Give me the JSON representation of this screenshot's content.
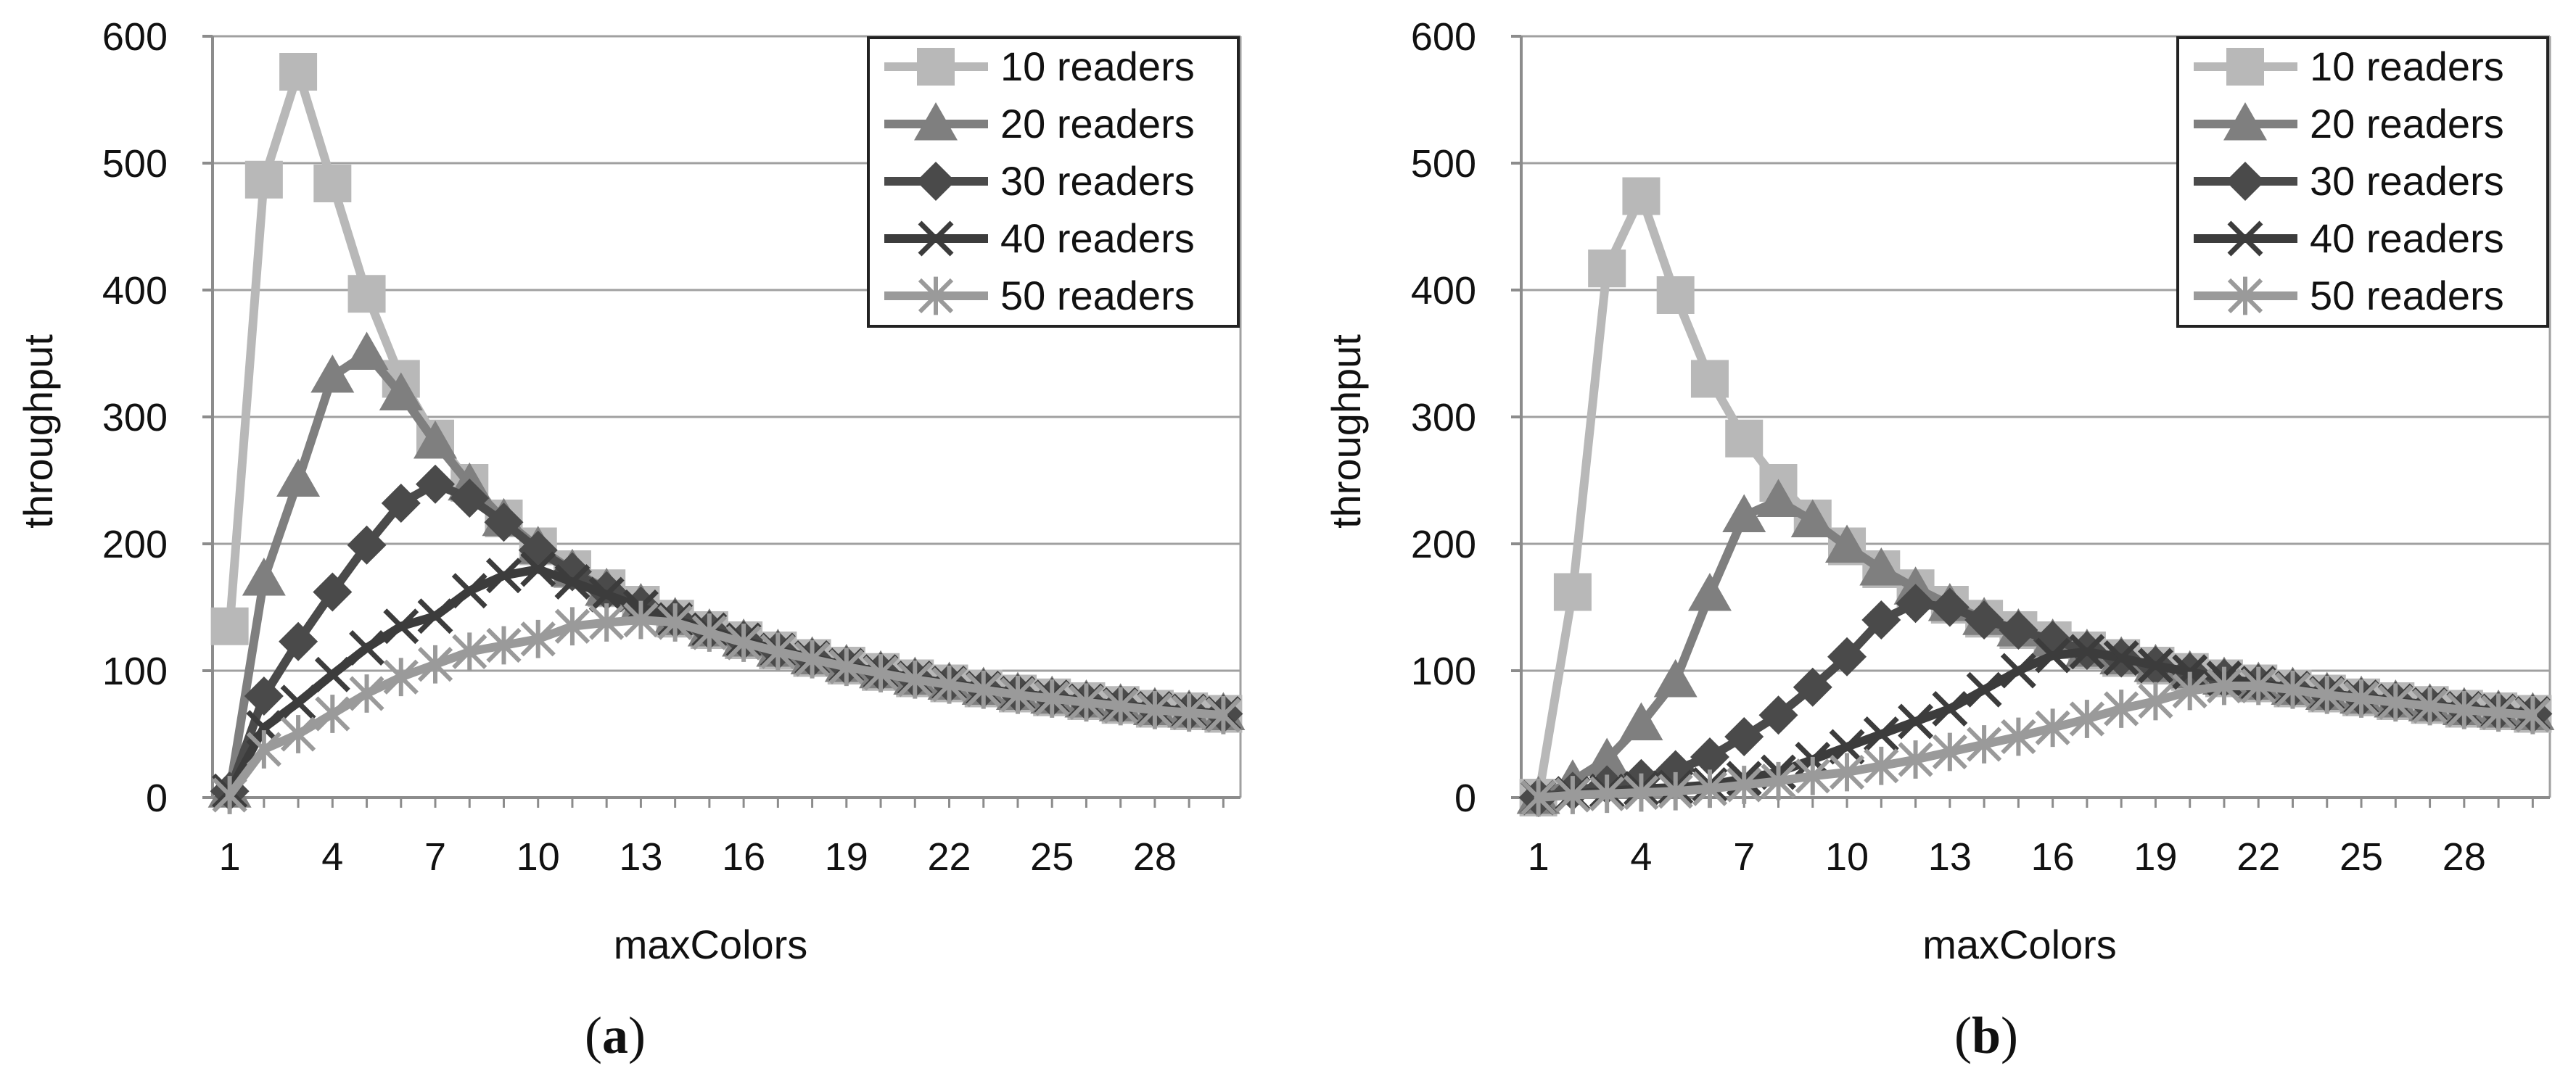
{
  "colors": {
    "background": "#ffffff",
    "gridline": "#a0a0a0",
    "axis": "#8c8c8c",
    "text": "#111111",
    "s10": "#b8b8b8",
    "s20": "#7f7f7f",
    "s30": "#4a4a4a",
    "s40": "#3c3c3c",
    "s50": "#9a9a9a"
  },
  "chart_data": [
    {
      "panel_label": "(a)",
      "panel_letter": "a",
      "type": "line",
      "xlabel": "maxColors",
      "ylabel": "throughput",
      "xlim": [
        0.5,
        30.5
      ],
      "ylim": [
        0,
        600
      ],
      "xticks": [
        1,
        4,
        7,
        10,
        13,
        16,
        19,
        22,
        25,
        28
      ],
      "yticks": [
        0,
        100,
        200,
        300,
        400,
        500,
        600
      ],
      "grid": "horizontal",
      "legend_position": "top-right",
      "x": [
        1,
        2,
        3,
        4,
        5,
        6,
        7,
        8,
        9,
        10,
        11,
        12,
        13,
        14,
        15,
        16,
        17,
        18,
        19,
        20,
        21,
        22,
        23,
        24,
        25,
        26,
        27,
        28,
        29,
        30
      ],
      "series": [
        {
          "name": "10 readers",
          "marker": "square",
          "color_key": "s10",
          "values": [
            135,
            487,
            572,
            484,
            397,
            330,
            283,
            248,
            220,
            198,
            180,
            165,
            152,
            141,
            132,
            124,
            116,
            110,
            104,
            99,
            94,
            90,
            86,
            82,
            79,
            76,
            73,
            70,
            68,
            66
          ]
        },
        {
          "name": "20 readers",
          "marker": "triangle",
          "color_key": "s20",
          "values": [
            5,
            172,
            250,
            332,
            350,
            318,
            280,
            247,
            219,
            197,
            179,
            164,
            152,
            141,
            132,
            124,
            116,
            110,
            104,
            99,
            94,
            90,
            86,
            82,
            79,
            76,
            73,
            70,
            68,
            66
          ]
        },
        {
          "name": "30 readers",
          "marker": "diamond",
          "color_key": "s30",
          "values": [
            5,
            80,
            123,
            162,
            199,
            232,
            247,
            236,
            217,
            195,
            178,
            163,
            151,
            141,
            132,
            124,
            116,
            110,
            104,
            99,
            94,
            90,
            86,
            82,
            79,
            76,
            73,
            70,
            68,
            66
          ]
        },
        {
          "name": "40 readers",
          "marker": "x",
          "color_key": "s40",
          "values": [
            5,
            55,
            75,
            97,
            118,
            135,
            143,
            163,
            175,
            180,
            170,
            160,
            150,
            140,
            132,
            124,
            116,
            110,
            104,
            99,
            94,
            90,
            86,
            82,
            79,
            76,
            73,
            70,
            68,
            66
          ]
        },
        {
          "name": "50 readers",
          "marker": "asterisk",
          "color_key": "s50",
          "values": [
            2,
            38,
            50,
            66,
            82,
            95,
            105,
            115,
            120,
            125,
            135,
            138,
            140,
            138,
            130,
            122,
            115,
            109,
            103,
            98,
            93,
            89,
            85,
            81,
            78,
            75,
            72,
            69,
            67,
            65
          ]
        }
      ]
    },
    {
      "panel_label": "(b)",
      "panel_letter": "b",
      "type": "line",
      "xlabel": "maxColors",
      "ylabel": "throughput",
      "xlim": [
        0.5,
        30.5
      ],
      "ylim": [
        0,
        600
      ],
      "xticks": [
        1,
        4,
        7,
        10,
        13,
        16,
        19,
        22,
        25,
        28
      ],
      "yticks": [
        0,
        100,
        200,
        300,
        400,
        500,
        600
      ],
      "grid": "horizontal",
      "legend_position": "top-right",
      "x": [
        1,
        2,
        3,
        4,
        5,
        6,
        7,
        8,
        9,
        10,
        11,
        12,
        13,
        14,
        15,
        16,
        17,
        18,
        19,
        20,
        21,
        22,
        23,
        24,
        25,
        26,
        27,
        28,
        29,
        30
      ],
      "series": [
        {
          "name": "10 readers",
          "marker": "square",
          "color_key": "s10",
          "values": [
            0,
            162,
            417,
            474,
            396,
            330,
            283,
            248,
            220,
            198,
            180,
            165,
            152,
            141,
            132,
            124,
            116,
            110,
            104,
            99,
            94,
            90,
            86,
            82,
            79,
            76,
            73,
            70,
            68,
            66
          ]
        },
        {
          "name": "20 readers",
          "marker": "triangle",
          "color_key": "s20",
          "values": [
            0,
            13,
            30,
            58,
            92,
            160,
            222,
            234,
            218,
            198,
            180,
            165,
            152,
            141,
            132,
            124,
            116,
            110,
            104,
            99,
            94,
            90,
            86,
            82,
            79,
            76,
            73,
            70,
            68,
            66
          ]
        },
        {
          "name": "30 readers",
          "marker": "diamond",
          "color_key": "s30",
          "values": [
            0,
            5,
            10,
            15,
            22,
            32,
            48,
            65,
            87,
            111,
            140,
            153,
            150,
            140,
            132,
            124,
            116,
            110,
            104,
            99,
            94,
            90,
            86,
            82,
            79,
            76,
            73,
            70,
            68,
            66
          ]
        },
        {
          "name": "40 readers",
          "marker": "x",
          "color_key": "s40",
          "values": [
            0,
            3,
            5,
            7,
            8,
            10,
            15,
            20,
            30,
            40,
            50,
            60,
            70,
            85,
            100,
            112,
            115,
            110,
            104,
            99,
            94,
            90,
            86,
            82,
            79,
            76,
            73,
            70,
            68,
            66
          ]
        },
        {
          "name": "50 readers",
          "marker": "asterisk",
          "color_key": "s50",
          "values": [
            0,
            2,
            3,
            4,
            5,
            7,
            10,
            13,
            17,
            20,
            25,
            30,
            36,
            42,
            48,
            55,
            62,
            70,
            76,
            84,
            88,
            88,
            85,
            81,
            78,
            75,
            72,
            69,
            67,
            65
          ]
        }
      ]
    }
  ]
}
